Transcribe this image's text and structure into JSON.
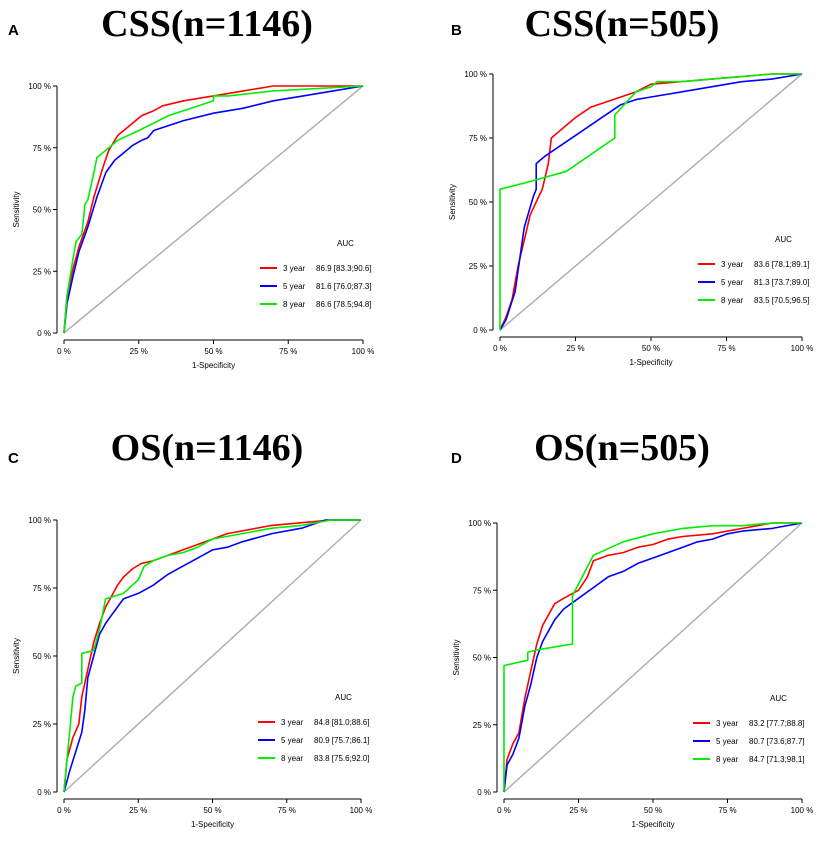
{
  "colors": {
    "year3": "#ff0000",
    "year5": "#0000ff",
    "year8": "#00ee00",
    "diagonal": "#b0b0b0",
    "axis": "#000000"
  },
  "chart_data": [
    {
      "panel": "A",
      "type": "line",
      "title": "CSS(n=1146)",
      "xlabel": "1-Specificity",
      "ylabel": "Sensitivity",
      "xlim": [
        0,
        100
      ],
      "ylim": [
        0,
        100
      ],
      "ticks": [
        "0 %",
        "25 %",
        "50 %",
        "75 %",
        "100 %"
      ],
      "tick_values": [
        0,
        25,
        50,
        75,
        100
      ],
      "legend_title": "AUC",
      "legend_position": "bottom-right",
      "series": [
        {
          "name": "3 year",
          "color_key": "year3",
          "auc": "86.9 [83.3;90.6]",
          "x": [
            0,
            1,
            3,
            5,
            8,
            10,
            13,
            15,
            18,
            22,
            26,
            30,
            33,
            40,
            50,
            60,
            70,
            80,
            90,
            100
          ],
          "y": [
            0,
            15,
            26,
            35,
            45,
            55,
            67,
            74,
            80,
            84,
            88,
            90,
            92,
            94,
            96,
            98,
            100,
            100,
            100,
            100
          ]
        },
        {
          "name": "5 year",
          "color_key": "year5",
          "auc": "81.6 [76.0;87.3]",
          "x": [
            0,
            1,
            3,
            5,
            8,
            11,
            14,
            17,
            20,
            23,
            26,
            28,
            30,
            40,
            50,
            60,
            70,
            80,
            90,
            100
          ],
          "y": [
            0,
            12,
            23,
            33,
            43,
            55,
            65,
            70,
            73,
            76,
            78,
            79,
            82,
            86,
            89,
            91,
            94,
            96,
            98,
            100
          ]
        },
        {
          "name": "8 year",
          "color_key": "year8",
          "auc": "86.6 [78.5;94.8]",
          "x": [
            0,
            1,
            3,
            4,
            6,
            7,
            8,
            10,
            11,
            14,
            18,
            25,
            35,
            45,
            50,
            50,
            55,
            70,
            100
          ],
          "y": [
            0,
            15,
            30,
            37,
            40,
            52,
            54,
            65,
            71,
            74,
            78,
            82,
            88,
            92,
            94,
            96,
            96,
            98,
            100
          ]
        }
      ]
    },
    {
      "panel": "B",
      "type": "line",
      "title": "CSS(n=505)",
      "xlabel": "1-Specificity",
      "ylabel": "Sensitivity",
      "xlim": [
        0,
        100
      ],
      "ylim": [
        0,
        100
      ],
      "ticks": [
        "0 %",
        "25 %",
        "50 %",
        "75 %",
        "100 %"
      ],
      "tick_values": [
        0,
        25,
        50,
        75,
        100
      ],
      "legend_title": "AUC",
      "legend_position": "bottom-right",
      "series": [
        {
          "name": "3 year",
          "color_key": "year3",
          "auc": "83.6 [78.1;89.1]",
          "x": [
            0,
            2,
            4,
            6,
            8,
            10,
            12,
            14,
            16,
            17,
            20,
            25,
            30,
            40,
            45,
            50,
            60,
            70,
            80,
            90,
            100
          ],
          "y": [
            0,
            5,
            12,
            25,
            35,
            45,
            50,
            55,
            65,
            75,
            78,
            83,
            87,
            91,
            93,
            96,
            97,
            98,
            99,
            100,
            100
          ]
        },
        {
          "name": "5 year",
          "color_key": "year5",
          "auc": "81.3 [73.7;89.0]",
          "x": [
            0,
            2,
            5,
            8,
            11,
            12,
            12,
            15,
            20,
            30,
            40,
            45,
            50,
            60,
            70,
            80,
            90,
            100
          ],
          "y": [
            0,
            4,
            15,
            40,
            52,
            55,
            65,
            68,
            72,
            80,
            88,
            90,
            91,
            93,
            95,
            97,
            98,
            100
          ]
        },
        {
          "name": "8 year",
          "color_key": "year8",
          "auc": "83.5 [70.5;96.5]",
          "x": [
            0,
            0,
            10,
            22,
            38,
            38,
            45,
            50,
            52,
            60,
            70,
            80,
            90,
            100
          ],
          "y": [
            0,
            55,
            58,
            62,
            75,
            84,
            93,
            95,
            97,
            97,
            98,
            99,
            100,
            100
          ]
        }
      ]
    },
    {
      "panel": "C",
      "type": "line",
      "title": "OS(n=1146)",
      "xlabel": "1-Specificity",
      "ylabel": "Sensitivity",
      "xlim": [
        0,
        100
      ],
      "ylim": [
        0,
        100
      ],
      "ticks": [
        "0 %",
        "25 %",
        "50 %",
        "75 %",
        "100 %"
      ],
      "tick_values": [
        0,
        25,
        50,
        75,
        100
      ],
      "legend_title": "AUC",
      "legend_position": "bottom-right",
      "series": [
        {
          "name": "3 year",
          "color_key": "year3",
          "auc": "84.8 [81.0;88.6]",
          "x": [
            0,
            1,
            2,
            3,
            5,
            6,
            8,
            10,
            12,
            14,
            16,
            18,
            20,
            23,
            26,
            30,
            35,
            40,
            45,
            50,
            55,
            60,
            70,
            80,
            90,
            100
          ],
          "y": [
            0,
            12,
            16,
            20,
            25,
            35,
            45,
            55,
            62,
            68,
            72,
            76,
            79,
            82,
            84,
            85,
            87,
            89,
            91,
            93,
            95,
            96,
            98,
            99,
            100,
            100
          ]
        },
        {
          "name": "5 year",
          "color_key": "year5",
          "auc": "80.9 [75.7;86.1]",
          "x": [
            0,
            2,
            4,
            6,
            7,
            8,
            10,
            12,
            14,
            16,
            18,
            20,
            25,
            30,
            35,
            40,
            45,
            50,
            55,
            60,
            70,
            80,
            88,
            100
          ],
          "y": [
            0,
            8,
            15,
            22,
            30,
            42,
            50,
            58,
            62,
            65,
            68,
            71,
            73,
            76,
            80,
            83,
            86,
            89,
            90,
            92,
            95,
            97,
            100,
            100
          ]
        },
        {
          "name": "8 year",
          "color_key": "year8",
          "auc": "83.8 [75.6;92.0]",
          "x": [
            0,
            1,
            2,
            3,
            4,
            6,
            6,
            10,
            12,
            14,
            20,
            22,
            25,
            27,
            30,
            35,
            40,
            45,
            50,
            60,
            70,
            80,
            90,
            100
          ],
          "y": [
            0,
            12,
            23,
            35,
            39,
            40,
            51,
            52,
            60,
            71,
            73,
            75,
            78,
            83,
            85,
            87,
            88,
            90,
            93,
            95,
            97,
            98,
            100,
            100
          ]
        }
      ]
    },
    {
      "panel": "D",
      "type": "line",
      "title": "OS(n=505)",
      "xlabel": "1-Specificity",
      "ylabel": "Sensitivity",
      "xlim": [
        0,
        100
      ],
      "ylim": [
        0,
        100
      ],
      "ticks": [
        "0 %",
        "25 %",
        "50 %",
        "75 %",
        "100 %"
      ],
      "tick_values": [
        0,
        25,
        50,
        75,
        100
      ],
      "legend_title": "AUC",
      "legend_position": "bottom-right",
      "series": [
        {
          "name": "3 year",
          "color_key": "year3",
          "auc": "83.2 [77.7;88.8]",
          "x": [
            0,
            1,
            3,
            5,
            7,
            9,
            11,
            13,
            15,
            17,
            20,
            25,
            28,
            30,
            35,
            40,
            45,
            50,
            55,
            60,
            70,
            80,
            90,
            100
          ],
          "y": [
            0,
            12,
            18,
            22,
            35,
            45,
            55,
            62,
            66,
            70,
            72,
            75,
            80,
            86,
            88,
            89,
            91,
            92,
            94,
            95,
            96,
            98,
            100,
            100
          ]
        },
        {
          "name": "5 year",
          "color_key": "year5",
          "auc": "80.7 [73.6;87.7]",
          "x": [
            0,
            1,
            3,
            5,
            7,
            9,
            11,
            13,
            15,
            17,
            20,
            25,
            30,
            35,
            40,
            45,
            50,
            55,
            60,
            65,
            70,
            75,
            80,
            90,
            100
          ],
          "y": [
            0,
            10,
            14,
            20,
            32,
            40,
            50,
            56,
            60,
            64,
            68,
            72,
            76,
            80,
            82,
            85,
            87,
            89,
            91,
            93,
            94,
            96,
            97,
            98,
            100
          ]
        },
        {
          "name": "8 year",
          "color_key": "year8",
          "auc": "84.7 [71.3;98.1]",
          "x": [
            0,
            0,
            8,
            8,
            12,
            23,
            23,
            30,
            40,
            50,
            60,
            70,
            80,
            90,
            100
          ],
          "y": [
            0,
            47,
            49,
            52,
            53,
            55,
            73,
            88,
            93,
            96,
            98,
            99,
            99,
            100,
            100
          ]
        }
      ]
    }
  ]
}
